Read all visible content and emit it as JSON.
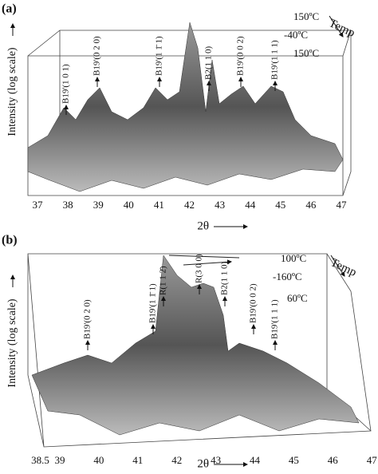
{
  "panels": [
    {
      "label": "(a)",
      "y_label": "Intensity (log scale)",
      "x_label": "2θ",
      "xticks": [
        37,
        38,
        39,
        40,
        41,
        42,
        43,
        44,
        45,
        46,
        47
      ],
      "temp_label": "Temp",
      "temperatures": [
        "150ºC",
        "-40ºC",
        "150ºC"
      ],
      "peaks": [
        "B19'(1 0 1)",
        "B19'(0 2 0)",
        "B19'(1 1̄ 1)",
        "B2(1 1 0)",
        "B19'(0 0 2)",
        "B19'(1 1 1)"
      ]
    },
    {
      "label": "(b)",
      "y_label": "Intensity (log scale)",
      "x_label": "2θ",
      "xticks": [
        38.5,
        39,
        40,
        41,
        42,
        43,
        44,
        45,
        46,
        47
      ],
      "temp_label": "Temp",
      "temperatures": [
        "100ºC",
        "-160ºC",
        "60ºC"
      ],
      "peaks": [
        "B19'(0 2 0)",
        "B19'(1 1̄ 1)",
        "R(1 1 2̄)",
        "R(3 0 0)",
        "B2(1 1 0)",
        "B19'(0 0 2)",
        "B19'(1 1 1)"
      ]
    }
  ]
}
